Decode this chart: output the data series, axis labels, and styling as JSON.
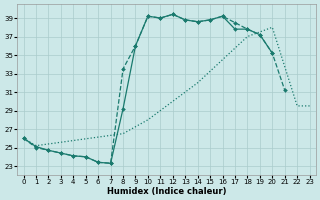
{
  "xlabel": "Humidex (Indice chaleur)",
  "bg_color": "#cce8e8",
  "grid_color": "#aacccc",
  "line_color": "#1a7a6e",
  "xlim": [
    -0.5,
    23.5
  ],
  "ylim": [
    22.0,
    40.5
  ],
  "xticks": [
    0,
    1,
    2,
    3,
    4,
    5,
    6,
    7,
    8,
    9,
    10,
    11,
    12,
    13,
    14,
    15,
    16,
    17,
    18,
    19,
    20,
    21,
    22,
    23
  ],
  "yticks": [
    23,
    25,
    27,
    29,
    31,
    33,
    35,
    37,
    39
  ],
  "series": [
    {
      "name": "dashed_markers",
      "x": [
        0,
        1,
        2,
        3,
        4,
        5,
        6,
        7,
        8,
        9,
        10,
        11,
        12,
        13,
        14,
        15,
        16,
        17,
        18,
        19,
        20,
        21
      ],
      "y": [
        26.0,
        25.0,
        24.7,
        24.4,
        24.1,
        24.0,
        23.4,
        23.3,
        33.5,
        36.0,
        39.2,
        39.0,
        39.4,
        38.8,
        38.6,
        38.8,
        39.2,
        38.5,
        37.8,
        37.2,
        35.2,
        31.2
      ],
      "linestyle": "--",
      "marker": "D",
      "markersize": 2.0,
      "linewidth": 0.9
    },
    {
      "name": "solid_markers",
      "x": [
        0,
        1,
        2,
        3,
        4,
        5,
        6,
        7,
        8,
        9,
        10,
        11,
        12,
        13,
        14,
        15,
        16,
        17,
        18,
        19,
        20
      ],
      "y": [
        26.0,
        25.1,
        24.7,
        24.4,
        24.1,
        24.0,
        23.4,
        23.3,
        29.2,
        36.0,
        39.2,
        39.0,
        39.4,
        38.8,
        38.6,
        38.8,
        39.2,
        37.8,
        37.8,
        37.2,
        35.2
      ],
      "linestyle": "-",
      "marker": "D",
      "markersize": 2.0,
      "linewidth": 0.9
    },
    {
      "name": "dotted_diagonal",
      "x": [
        0,
        1,
        8,
        10,
        12,
        14,
        16,
        18,
        20,
        22,
        23
      ],
      "y": [
        26.0,
        25.2,
        26.5,
        28.0,
        30.0,
        32.0,
        34.5,
        37.0,
        38.0,
        29.5,
        29.5
      ],
      "linestyle": ":",
      "marker": null,
      "markersize": 0,
      "linewidth": 0.9
    }
  ]
}
